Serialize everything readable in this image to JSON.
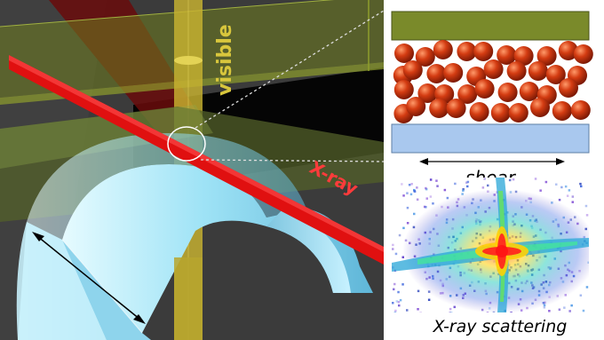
{
  "labels": {
    "visible": "visible",
    "xray": "X-ray",
    "shear": "shear",
    "scattering": "X-ray scattering"
  },
  "colors": {
    "background_dark": "#3d3d3d",
    "xray_beam": "#e01010",
    "visible_beam": "#d8c23a",
    "top_plate": "#7a8a2a",
    "bottom_plate": "#a9c8ee",
    "particles": "#c0330e",
    "cylinder": "#aee8f8"
  }
}
